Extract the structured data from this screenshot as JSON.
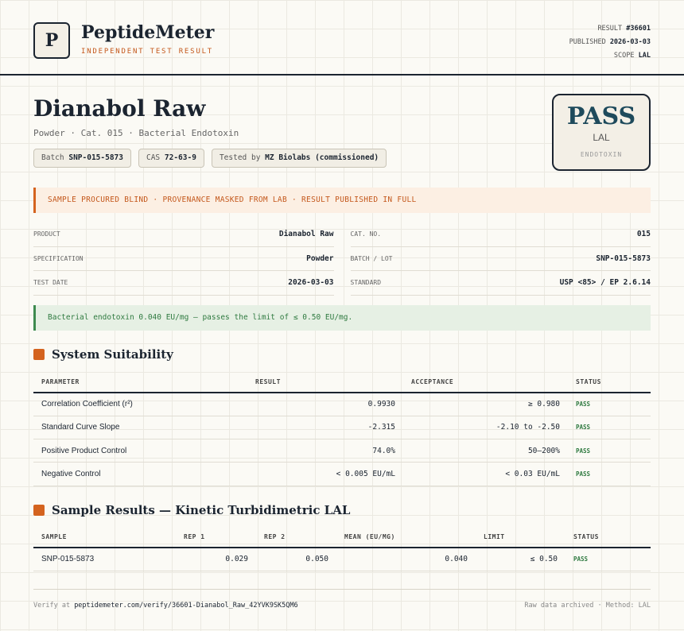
{
  "header": {
    "logo_letter": "P",
    "brand": "PeptideMeter",
    "tagline": "INDEPENDENT TEST RESULT",
    "meta": [
      {
        "label": "RESULT",
        "value": "#36601"
      },
      {
        "label": "PUBLISHED",
        "value": "2026-03-03"
      },
      {
        "label": "SCOPE",
        "value": "LAL"
      }
    ]
  },
  "product": {
    "title": "Dianabol Raw",
    "subtitle": "Powder · Cat. 015 · Bacterial Endotoxin",
    "chips": [
      {
        "label": "Batch",
        "value": "SNP-015-5873"
      },
      {
        "label": "CAS",
        "value": "72-63-9"
      },
      {
        "label": "Tested by",
        "value": "MZ Biolabs (commissioned)"
      }
    ]
  },
  "verdict": {
    "result": "PASS",
    "method": "LAL",
    "test": "ENDOTOXIN"
  },
  "notice": "SAMPLE PROCURED BLIND · PROVENANCE MASKED FROM LAB · RESULT PUBLISHED IN FULL",
  "details": [
    [
      {
        "label": "PRODUCT",
        "value": "Dianabol Raw"
      },
      {
        "label": "CAT. NO.",
        "value": "015"
      }
    ],
    [
      {
        "label": "SPECIFICATION",
        "value": "Powder"
      },
      {
        "label": "BATCH / LOT",
        "value": "SNP-015-5873"
      }
    ],
    [
      {
        "label": "TEST DATE",
        "value": "2026-03-03"
      },
      {
        "label": "STANDARD",
        "value": "USP <85> / EP 2.6.14"
      }
    ]
  ],
  "summary": "Bacterial endotoxin 0.040 EU/mg — passes the limit of ≤ 0.50 EU/mg.",
  "suitability": {
    "title": "System Suitability",
    "columns": [
      "PARAMETER",
      "RESULT",
      "ACCEPTANCE",
      "STATUS"
    ],
    "rows": [
      [
        "Correlation Coefficient (r²)",
        "0.9930",
        "≥ 0.980",
        "PASS"
      ],
      [
        "Standard Curve Slope",
        "-2.315",
        "-2.10 to -2.50",
        "PASS"
      ],
      [
        "Positive Product Control",
        "74.0%",
        "50–200%",
        "PASS"
      ],
      [
        "Negative Control",
        "< 0.005 EU/mL",
        "< 0.03 EU/mL",
        "PASS"
      ]
    ]
  },
  "samples": {
    "title": "Sample Results — Kinetic Turbidimetric LAL",
    "columns": [
      "SAMPLE",
      "REP 1",
      "REP 2",
      "MEAN (EU/MG)",
      "LIMIT",
      "STATUS"
    ],
    "rows": [
      [
        "SNP-015-5873",
        "0.029",
        "0.050",
        "0.040",
        "≤ 0.50",
        "PASS"
      ]
    ]
  },
  "footer": {
    "verify_label": "Verify at",
    "verify_url": "peptidemeter.com/verify/36601-Dianabol_Raw_42YVK9SK5QM6",
    "note": "Raw data archived · Method: LAL"
  }
}
